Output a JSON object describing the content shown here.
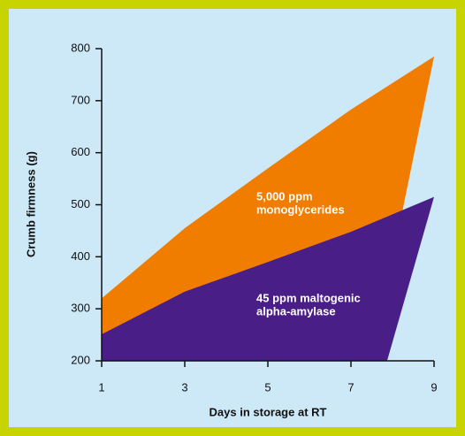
{
  "chart_data": {
    "type": "area",
    "xlabel": "Days in storage at RT",
    "ylabel": "Crumb firmness (g)",
    "xlim": [
      1,
      9
    ],
    "xticks": [
      1,
      3,
      5,
      7,
      9
    ],
    "ylim": [
      200,
      800
    ],
    "yticks": [
      200,
      300,
      400,
      500,
      600,
      700,
      800
    ],
    "grid": false,
    "series": [
      {
        "name": "5,000 ppm monoglycerides",
        "color": "#f07d00",
        "x": [
          1,
          3,
          5,
          7,
          9,
          7.5
        ],
        "values": [
          320,
          455,
          570,
          683,
          785,
          200
        ]
      },
      {
        "name": "45 ppm maltogenic alpha-amylase",
        "color": "#4a1e87",
        "x": [
          1,
          3,
          5,
          7,
          9,
          7.87
        ],
        "values": [
          251,
          333,
          390,
          448,
          515,
          200
        ]
      }
    ],
    "annotations": [
      {
        "lines": [
          "5,000 ppm",
          "monoglycerides"
        ],
        "color": "#ffffff"
      },
      {
        "lines": [
          "45 ppm maltogenic",
          "alpha-amylase"
        ],
        "color": "#ffffff"
      }
    ]
  }
}
